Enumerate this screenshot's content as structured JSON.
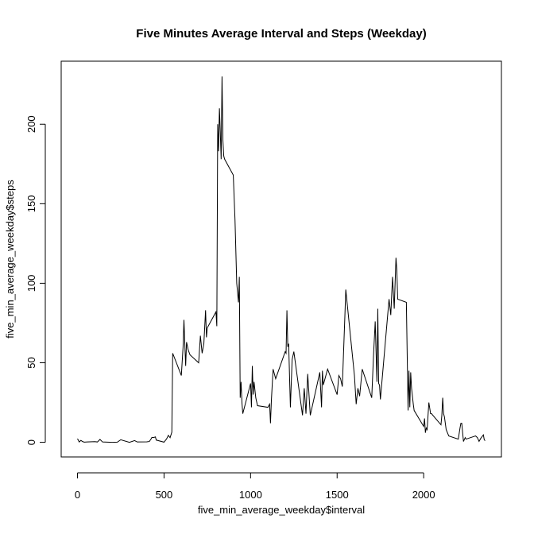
{
  "chart_data": {
    "type": "line",
    "title": "Five Minutes Average Interval and Steps (Weekday)",
    "x_label": "five_min_average_weekday$interval",
    "y_label": "five_min_average_weekday$steps",
    "color": "#000000",
    "xlim": [
      -94.2,
      2449.2
    ],
    "ylim": [
      -9.2,
      239.6
    ],
    "xticks": [
      0,
      500,
      1000,
      1500,
      2000
    ],
    "yticks": [
      0,
      50,
      100,
      150,
      200
    ],
    "x": [
      0,
      10,
      20,
      30,
      40,
      55,
      100,
      115,
      130,
      145,
      200,
      230,
      250,
      300,
      330,
      345,
      400,
      415,
      425,
      430,
      440,
      450,
      455,
      500,
      515,
      525,
      535,
      545,
      550,
      600,
      610,
      615,
      620,
      625,
      630,
      640,
      650,
      700,
      710,
      720,
      730,
      740,
      745,
      750,
      800,
      805,
      810,
      815,
      820,
      825,
      830,
      835,
      840,
      845,
      850,
      900,
      910,
      920,
      930,
      935,
      940,
      945,
      950,
      955,
      1000,
      1005,
      1010,
      1015,
      1020,
      1030,
      1040,
      1100,
      1110,
      1115,
      1120,
      1130,
      1145,
      1200,
      1205,
      1210,
      1215,
      1220,
      1230,
      1240,
      1250,
      1300,
      1310,
      1320,
      1330,
      1345,
      1400,
      1410,
      1415,
      1420,
      1430,
      1445,
      1500,
      1510,
      1520,
      1530,
      1545,
      1550,
      1600,
      1610,
      1620,
      1630,
      1645,
      1700,
      1710,
      1720,
      1730,
      1735,
      1740,
      1745,
      1750,
      1800,
      1810,
      1820,
      1830,
      1840,
      1845,
      1850,
      1900,
      1910,
      1915,
      1920,
      1925,
      1930,
      1940,
      1945,
      2000,
      2005,
      2010,
      2015,
      2020,
      2030,
      2040,
      2045,
      2100,
      2105,
      2110,
      2115,
      2120,
      2130,
      2145,
      2200,
      2210,
      2215,
      2220,
      2230,
      2240,
      2245,
      2300,
      2310,
      2320,
      2330,
      2345,
      2350,
      2355
    ],
    "values": [
      2.3,
      0.2,
      1.2,
      0.4,
      0.1,
      0.2,
      0.4,
      0.2,
      1.8,
      0.2,
      0,
      0.1,
      1.6,
      0,
      1.1,
      0.2,
      0.3,
      0.5,
      2.1,
      3.1,
      3.0,
      3.4,
      1.4,
      0.1,
      2.2,
      4.4,
      2.9,
      6.4,
      56,
      42,
      60,
      77,
      62,
      48,
      63,
      58,
      55,
      50,
      67,
      56,
      62,
      83,
      66,
      72,
      82,
      73,
      200,
      183,
      210,
      195,
      178,
      230,
      190,
      180,
      178,
      168,
      140,
      100,
      88,
      104,
      28,
      38,
      25,
      18,
      37,
      22,
      48,
      30,
      38,
      28,
      23,
      22,
      24,
      12,
      26,
      46,
      40,
      57,
      56,
      83,
      60,
      62,
      22,
      52,
      57,
      17,
      34,
      18,
      43,
      17,
      44,
      22,
      45,
      36,
      40,
      46,
      30,
      42,
      40,
      35,
      80,
      96,
      42,
      24,
      34,
      29,
      46,
      28,
      54,
      76,
      38,
      84,
      37,
      36,
      27,
      90,
      80,
      104,
      84,
      116,
      108,
      90,
      88,
      20,
      45,
      22,
      44,
      34,
      24,
      20,
      10,
      15,
      6,
      9,
      8,
      25,
      18,
      18,
      11,
      17,
      28,
      18,
      16,
      8,
      4,
      2,
      9,
      12,
      12,
      0.5,
      3,
      2,
      4,
      3,
      0.6,
      2.5,
      4.7,
      1.6,
      1
    ]
  }
}
